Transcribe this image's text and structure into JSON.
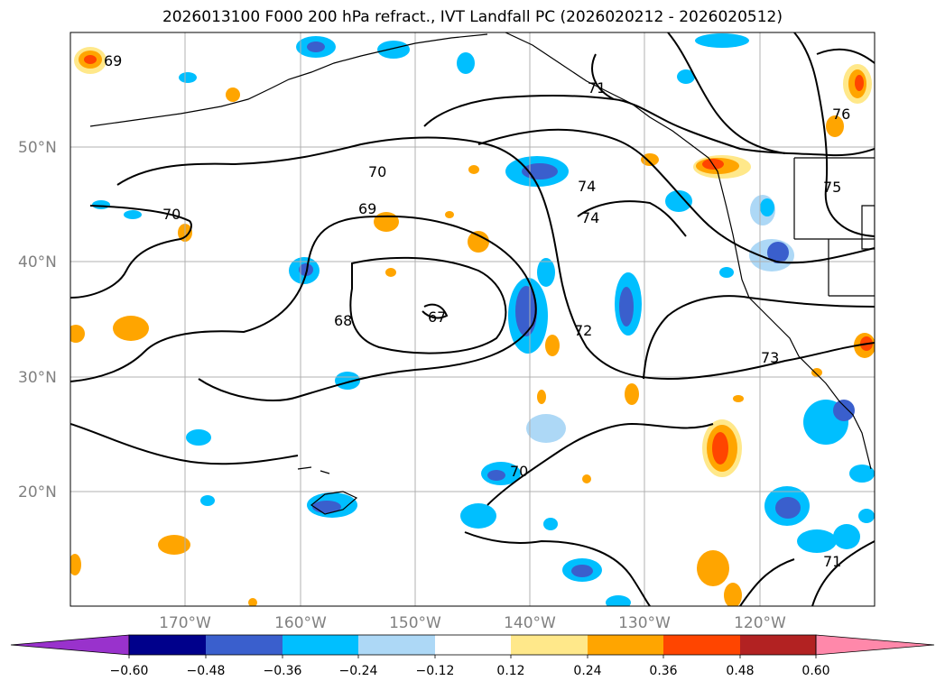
{
  "title": "2026013100 F000 200 hPa refract., IVT Landfall PC (2026020212 - 2026020512)",
  "colors": {
    "grid": "#b0b0b0",
    "coast": "#000000",
    "contour": "#000000",
    "tick_label": "#808080"
  },
  "lat_labels": [
    "50°N",
    "40°N",
    "30°N",
    "20°N"
  ],
  "lon_labels": [
    "170°W",
    "160°W",
    "150°W",
    "140°W",
    "130°W",
    "120°W"
  ],
  "contour_labels": [
    "69",
    "70",
    "69",
    "70",
    "68",
    "67",
    "74",
    "74",
    "71",
    "72",
    "73",
    "75",
    "76",
    "70",
    "71"
  ],
  "colorbar": {
    "tick_labels": [
      "−0.60",
      "−0.48",
      "−0.36",
      "−0.24",
      "−0.12",
      "0.12",
      "0.24",
      "0.36",
      "0.48",
      "0.60"
    ],
    "colors": [
      "#9932cc",
      "#00008b",
      "#3a5fcd",
      "#00bfff",
      "#add8f6",
      "#ffffff",
      "#ffe88a",
      "#ffa500",
      "#ff4500",
      "#b22222",
      "#ff88aa"
    ]
  },
  "chart_data": {
    "type": "map",
    "projection": "lat-lon",
    "lon_range": [
      "180°W",
      "110°W"
    ],
    "lat_range": [
      "10°N",
      "60°N"
    ],
    "contour_field": "200 hPa refractivity",
    "shaded_field": "IVT Landfall PC",
    "contour_values": [
      67,
      68,
      69,
      70,
      71,
      72,
      73,
      74,
      75,
      76
    ],
    "colorbar_levels": [
      -0.6,
      -0.48,
      -0.36,
      -0.24,
      -0.12,
      0.12,
      0.24,
      0.36,
      0.48,
      0.6
    ],
    "grid": true
  }
}
